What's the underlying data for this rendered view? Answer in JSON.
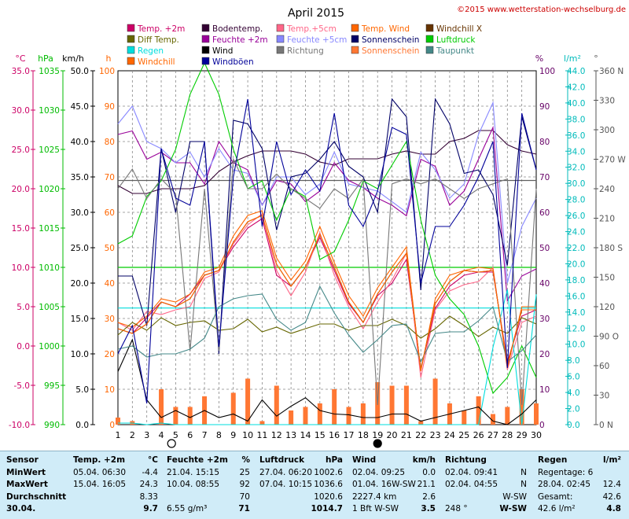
{
  "chart_data": {
    "type": "line",
    "title": "April 2015",
    "copyright": "©2015 www.wetterstation-wechselburg.de",
    "x": [
      1,
      2,
      3,
      4,
      5,
      6,
      7,
      8,
      9,
      10,
      11,
      12,
      13,
      14,
      15,
      16,
      17,
      18,
      19,
      20,
      21,
      22,
      23,
      24,
      25,
      26,
      27,
      28,
      29,
      30
    ],
    "x_ticks": [
      "1",
      "2",
      "3",
      "4",
      "5",
      "6",
      "7",
      "8",
      "9",
      "10",
      "11",
      "12",
      "13",
      "14",
      "15",
      "16",
      "17",
      "18",
      "19",
      "20",
      "21",
      "22",
      "23",
      "24",
      "25",
      "26",
      "27",
      "28",
      "29",
      "30"
    ],
    "axes": [
      {
        "unit": "°C",
        "color": "#cc0066",
        "range": [
          -10,
          35
        ],
        "step": 5,
        "labels": [
          "-10.0",
          "-5.0",
          "0.0",
          "5.0",
          "10.0",
          "15.0",
          "20.0",
          "25.0",
          "30.0",
          "35.0"
        ]
      },
      {
        "unit": "hPa",
        "color": "#00bb00",
        "range": [
          990,
          1035
        ],
        "step": 5,
        "labels": [
          "990",
          "995",
          "1000",
          "1005",
          "1010",
          "1015",
          "1020",
          "1025",
          "1030",
          "1035"
        ]
      },
      {
        "unit": "km/h",
        "color": "#000000",
        "range": [
          0,
          50
        ],
        "step": 5,
        "labels": [
          "0.0",
          "5.0",
          "10.0",
          "15.0",
          "20.0",
          "25.0",
          "30.0",
          "35.0",
          "40.0",
          "45.0",
          "50.0"
        ]
      },
      {
        "unit": "h",
        "color": "#ff6600",
        "range": [
          0,
          100
        ],
        "step": 10,
        "labels": [
          "0",
          "10",
          "20",
          "30",
          "40",
          "50",
          "60",
          "70",
          "80",
          "90",
          "100"
        ]
      },
      {
        "unit": "%",
        "color": "#660066",
        "range": [
          0,
          100
        ],
        "step": 10,
        "labels": [
          "0",
          "10",
          "20",
          "30",
          "40",
          "50",
          "60",
          "70",
          "80",
          "90",
          "100"
        ]
      },
      {
        "unit": "l/m²",
        "color": "#00bbbb",
        "range": [
          0,
          44
        ],
        "step": 2,
        "labels": [
          "0.0",
          "2.0",
          "4.0",
          "6.0",
          "8.0",
          "10.0",
          "12.0",
          "14.0",
          "16.0",
          "18.0",
          "20.0",
          "22.0",
          "24.0",
          "26.0",
          "28.0",
          "30.0",
          "32.0",
          "34.0",
          "36.0",
          "38.0",
          "40.0",
          "42.0",
          "44.0"
        ]
      },
      {
        "unit": "°",
        "color": "#555555",
        "range": [
          0,
          360
        ],
        "step": 30,
        "labels": [
          "0 N",
          "30",
          "60",
          "90 O",
          "120",
          "150",
          "180 S",
          "210",
          "240",
          "270 W",
          "300",
          "330",
          "360 N"
        ]
      }
    ],
    "legend": [
      {
        "name": "Temp. +2m",
        "color": "#cc0066"
      },
      {
        "name": "Bodentemp.",
        "color": "#330033"
      },
      {
        "name": "Temp.+5cm",
        "color": "#ff6688"
      },
      {
        "name": "Temp. Wind",
        "color": "#ff6600"
      },
      {
        "name": "Windchill X",
        "color": "#663300"
      },
      {
        "name": "Diff Temp.",
        "color": "#666600"
      },
      {
        "name": "Feuchte +2m",
        "color": "#990099"
      },
      {
        "name": "Feuchte +5cm",
        "color": "#8888ff"
      },
      {
        "name": "Sonnenschein",
        "color": "#000066"
      },
      {
        "name": "Luftdruck",
        "color": "#00cc00"
      },
      {
        "name": "Regen",
        "color": "#00dddd"
      },
      {
        "name": "Wind",
        "color": "#000000"
      },
      {
        "name": "Richtung",
        "color": "#777777"
      },
      {
        "name": "Sonnenschein",
        "color": "#ff7733"
      },
      {
        "name": "Taupunkt",
        "color": "#448888"
      },
      {
        "name": "Windchill",
        "color": "#ff6600"
      },
      {
        "name": "Windböen",
        "color": "#000099"
      }
    ],
    "series": [
      {
        "name": "Temp. +2m",
        "axis": 0,
        "color": "#cc0066",
        "values": [
          2.2,
          1.6,
          3.6,
          5.6,
          5.0,
          6.6,
          9.0,
          9.6,
          12.6,
          15.0,
          16.2,
          9.0,
          7.6,
          10.0,
          13.8,
          9.6,
          5.4,
          3.0,
          6.4,
          8.0,
          11.0,
          -3.0,
          4.8,
          7.6,
          9.0,
          9.4,
          9.4,
          -2.0,
          3.8,
          4.6
        ]
      },
      {
        "name": "Bodentemp.",
        "axis": 0,
        "color": "#330033",
        "values": [
          20.4,
          19.4,
          19.4,
          20.0,
          20.0,
          20.0,
          20.4,
          22.2,
          23.4,
          24.2,
          24.8,
          24.8,
          24.8,
          24.4,
          23.4,
          23.0,
          23.8,
          23.8,
          23.8,
          24.4,
          24.8,
          24.4,
          24.4,
          26.0,
          26.4,
          27.4,
          27.4,
          25.6,
          24.8,
          24.4
        ]
      },
      {
        "name": "Temp.+5cm",
        "axis": 0,
        "color": "#ff6688",
        "values": [
          3.0,
          2.0,
          4.4,
          4.0,
          4.6,
          5.0,
          8.6,
          9.4,
          13.0,
          15.4,
          16.8,
          9.6,
          6.4,
          9.4,
          14.4,
          9.0,
          5.0,
          2.2,
          5.6,
          8.4,
          11.8,
          -4.0,
          4.6,
          7.0,
          7.8,
          8.2,
          10.0,
          -3.0,
          3.0,
          3.8
        ]
      },
      {
        "name": "Temp. Wind",
        "axis": 0,
        "color": "#ff6600",
        "values": [
          3.0,
          2.4,
          3.8,
          6.0,
          5.6,
          6.6,
          9.4,
          10.0,
          14.0,
          16.6,
          17.2,
          11.2,
          8.4,
          10.8,
          15.2,
          10.6,
          6.4,
          3.8,
          7.4,
          10.0,
          12.6,
          -3.2,
          6.0,
          9.0,
          9.6,
          10.0,
          9.8,
          -2.8,
          5.0,
          5.0
        ]
      },
      {
        "name": "Windchill X",
        "axis": 0,
        "color": "#663300",
        "values": [
          2.2,
          1.6,
          2.8,
          5.6,
          5.0,
          6.0,
          9.0,
          9.6,
          13.2,
          15.8,
          16.6,
          10.4,
          7.6,
          10.0,
          14.2,
          10.0,
          5.6,
          3.0,
          6.6,
          9.4,
          11.8,
          -3.0,
          5.4,
          8.2,
          9.6,
          9.4,
          9.6,
          -2.4,
          4.6,
          4.6
        ]
      },
      {
        "name": "Diff Temp.",
        "axis": 0,
        "color": "#666600",
        "values": [
          1.4,
          3.0,
          2.0,
          3.6,
          2.6,
          3.0,
          3.2,
          2.0,
          2.2,
          3.4,
          1.8,
          2.4,
          1.6,
          2.2,
          2.8,
          2.8,
          2.0,
          2.6,
          2.6,
          3.4,
          2.6,
          1.0,
          2.2,
          3.8,
          2.6,
          1.2,
          2.4,
          1.6,
          3.6,
          2.8
        ]
      },
      {
        "name": "Feuchte +2m",
        "axis": 4,
        "color": "#990099",
        "values": [
          82,
          83,
          75,
          77,
          74,
          74,
          68,
          80,
          74,
          72,
          62,
          69,
          68,
          63,
          66,
          74,
          69,
          67,
          64,
          62,
          59,
          75,
          73,
          62,
          66,
          75,
          84,
          35,
          42,
          44
        ]
      },
      {
        "name": "Feuchte +5cm",
        "axis": 4,
        "color": "#8888ff",
        "values": [
          85,
          90,
          80,
          78,
          74,
          77,
          70,
          78,
          72,
          71,
          62,
          70,
          70,
          65,
          68,
          77,
          68,
          67,
          66,
          63,
          60,
          77,
          72,
          64,
          68,
          82,
          91,
          40,
          56,
          64
        ]
      },
      {
        "name": "Sonnenschein",
        "axis": 4,
        "color": "#000066",
        "values": [
          42,
          42,
          28,
          78,
          60,
          80,
          80,
          20,
          86,
          85,
          78,
          55,
          70,
          71,
          75,
          80,
          73,
          70,
          60,
          92,
          87,
          38,
          92,
          85,
          71,
          72,
          65,
          45,
          87,
          72
        ]
      },
      {
        "name": "Luftdruck",
        "axis": 1,
        "color": "#00cc00",
        "values": [
          1013,
          1014,
          1019,
          1021,
          1025,
          1032,
          1036,
          1032,
          1025,
          1020,
          1021,
          1016,
          1020,
          1019,
          1011,
          1012,
          1016,
          1021,
          1020,
          1023,
          1026,
          1016,
          1009,
          1006,
          1004,
          1000,
          994,
          996,
          1000,
          996
        ]
      },
      {
        "name": "Regen",
        "axis": 5,
        "color": "#00dddd",
        "values": [
          0.2,
          0.2,
          0,
          0.2,
          0,
          0,
          0,
          0,
          0,
          0,
          0,
          0,
          0,
          0,
          0,
          0,
          0,
          0,
          0,
          0,
          0,
          0,
          0,
          0,
          0,
          0,
          9.6,
          16.8,
          0,
          16.2
        ]
      },
      {
        "name": "Wind",
        "axis": 2,
        "color": "#000000",
        "values": [
          7.5,
          12.0,
          3.5,
          1.0,
          2.0,
          1.0,
          2.0,
          1.0,
          1.5,
          0.5,
          3.5,
          1.2,
          2.6,
          3.8,
          2.0,
          1.5,
          1.4,
          1.0,
          1.0,
          1.5,
          1.5,
          0.5,
          1.0,
          1.5,
          2.0,
          2.5,
          0.5,
          0.0,
          1.5,
          3.5
        ]
      },
      {
        "name": "Richtung",
        "axis": 6,
        "color": "#777777",
        "values": [
          240,
          260,
          230,
          250,
          235,
          75,
          240,
          75,
          270,
          240,
          240,
          255,
          240,
          230,
          220,
          240,
          230,
          250,
          20,
          245,
          250,
          245,
          250,
          240,
          230,
          240,
          245,
          250,
          20,
          240
        ]
      },
      {
        "name": "Sonnenschein",
        "axis": 3,
        "color": "#ff7733",
        "type": "bar",
        "values": [
          2,
          1,
          0,
          10,
          5,
          5,
          8,
          0,
          9,
          13,
          1,
          11,
          4,
          5,
          6,
          10,
          5,
          6,
          12,
          11,
          11,
          1,
          13,
          6,
          4,
          8,
          3,
          5,
          10,
          6
        ]
      },
      {
        "name": "Taupunkt",
        "axis": 0,
        "color": "#448888",
        "values": [
          -0.4,
          0.0,
          -1.4,
          -1.0,
          -1.0,
          -0.4,
          1.0,
          5.0,
          6.0,
          6.4,
          6.6,
          3.4,
          2.0,
          3.0,
          7.6,
          4.2,
          1.4,
          -0.8,
          0.8,
          2.6,
          2.8,
          -2.0,
          1.6,
          1.8,
          1.8,
          3.2,
          5.0,
          -2.0,
          -0.6,
          1.4
        ]
      },
      {
        "name": "Windchill",
        "axis": 0,
        "color": "#ff6600",
        "values": [
          2.2,
          1.6,
          2.8,
          5.6,
          5.0,
          6.0,
          9.0,
          9.6,
          13.2,
          15.8,
          16.6,
          10.4,
          7.6,
          10.0,
          14.2,
          10.0,
          5.6,
          3.0,
          6.6,
          9.4,
          11.8,
          -3.0,
          5.4,
          8.2,
          9.6,
          9.4,
          9.6,
          -2.4,
          4.6,
          4.6
        ]
      },
      {
        "name": "Windböen",
        "axis": 2,
        "color": "#000099",
        "values": [
          10.0,
          14.0,
          3.0,
          39.0,
          32.0,
          31.0,
          40.0,
          11.0,
          35.0,
          46.0,
          28.0,
          40.0,
          32.5,
          36.0,
          33.0,
          44.0,
          31.0,
          28.0,
          33.0,
          42.0,
          41.0,
          20.0,
          28.0,
          28.0,
          31.0,
          35.0,
          40.0,
          8.0,
          44.0,
          36.0
        ]
      }
    ],
    "reference_lines": [
      {
        "axis": 2,
        "value": 34.5,
        "color": "#606060"
      },
      {
        "axis": 1,
        "value": 1010,
        "color": "#00cc00"
      },
      {
        "axis": 5,
        "value": 14.5,
        "color": "#00dddd"
      }
    ],
    "moon_markers": [
      {
        "day": 4.5,
        "phase": "full"
      },
      {
        "day": 19,
        "phase": "new"
      }
    ]
  },
  "stats": {
    "sensor": {
      "header": "Sensor",
      "rows": [
        "MinWert",
        "MaxWert",
        "Durchschnitt",
        "30.04."
      ]
    },
    "temp": {
      "header": "Temp. +2m",
      "unit": "°C",
      "rows": [
        [
          "05.04.  06:30",
          "-4.4"
        ],
        [
          "15.04.  16:05",
          "24.3"
        ],
        [
          "",
          "8.33"
        ],
        [
          "",
          "9.7"
        ]
      ]
    },
    "feuchte": {
      "header": "Feuchte +2m",
      "unit": "%",
      "rows": [
        [
          "21.04.  15:15",
          "25"
        ],
        [
          "10.04.  08:55",
          "92"
        ],
        [
          "",
          "70"
        ],
        [
          "6.55 g/m³",
          "71"
        ]
      ]
    },
    "luftdruck": {
      "header": "Luftdruck",
      "unit": "hPa",
      "rows": [
        [
          "27.04.  06:20",
          "1002.6"
        ],
        [
          "07.04.  10:15",
          "1036.6"
        ],
        [
          "",
          "1020.6"
        ],
        [
          "",
          "1014.7"
        ]
      ]
    },
    "wind": {
      "header": "Wind",
      "unit": "km/h",
      "rows": [
        [
          "02.04.  09:25",
          "0.0"
        ],
        [
          "01.04.  16W-SW",
          "21.1"
        ],
        [
          "2227.4 km",
          "2.6"
        ],
        [
          "1 Bft W-SW",
          "3.5"
        ]
      ]
    },
    "richtung": {
      "header": "Richtung",
      "rows": [
        [
          "02.04.  09:41",
          "N"
        ],
        [
          "02.04.  04:55",
          "N"
        ],
        [
          "",
          "W-SW"
        ],
        [
          "248 °",
          "W-SW"
        ]
      ]
    },
    "regen": {
      "header": "Regen",
      "unit": "l/m²",
      "rows": [
        [
          "Regentage: 6",
          ""
        ],
        [
          "28.04.  02:45",
          "12.4"
        ],
        [
          "Gesamt:",
          "42.6"
        ],
        [
          "42.6 l/m²",
          "4.8"
        ]
      ]
    }
  }
}
